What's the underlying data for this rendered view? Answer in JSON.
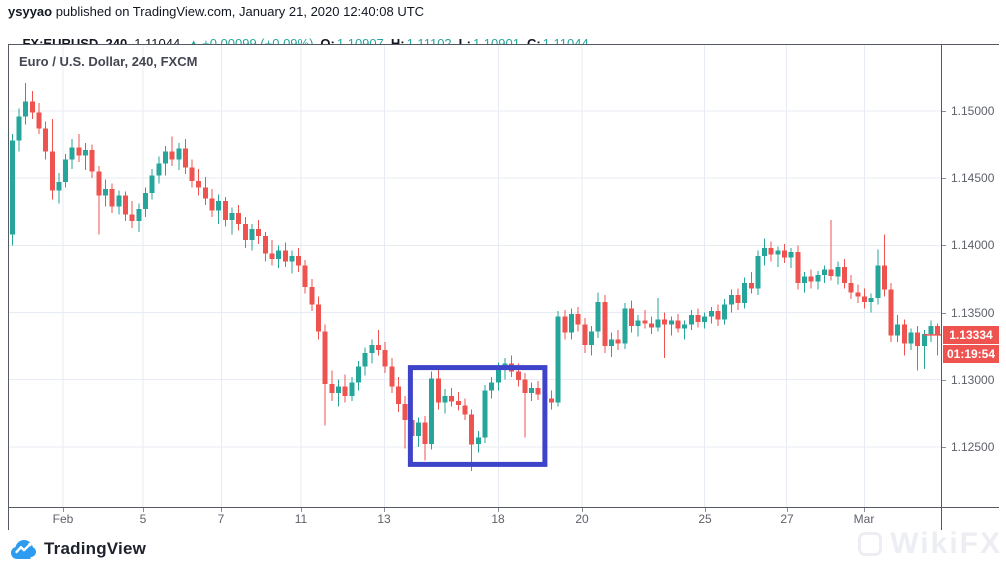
{
  "header": {
    "byline": {
      "author": "ysyyao",
      "text": " published on TradingView.com, January 21, 2020 12:40:08 UTC"
    },
    "symbol_line": {
      "symbol": "FX:EURUSD, 240",
      "last": "1.11044",
      "arrow": "▲",
      "change": "+0.00099 (+0.09%)",
      "o_label": "O:",
      "o": "1.10907",
      "h_label": "H:",
      "h": "1.11102",
      "l_label": "L:",
      "l": "1.10901",
      "c_label": "C:",
      "c": "1.11044"
    }
  },
  "chart": {
    "title": "Euro / U.S. Dollar, 240, FXCM"
  },
  "footer": {
    "brand": "TradingView"
  },
  "watermark": "WikiFX",
  "colors": {
    "up": "#26a69a",
    "down": "#ef5350",
    "grid": "#e7ebf3",
    "frame": "#555962",
    "axis_text": "#5d616b",
    "badge_bg": "#ef5350",
    "badge_text": "#ffffff",
    "annotation_box": "#3e44c9",
    "tv_blue": "#2d9cf0"
  },
  "chart_data": {
    "type": "candlestick",
    "title": "Euro / U.S. Dollar, 240, FXCM",
    "symbol": "EURUSD",
    "timeframe_minutes": "240",
    "exchange": "FXCM",
    "price_range_visible": [
      1.12053,
      1.15491
    ],
    "grid": true,
    "y_axis_labels": [
      {
        "label": "1.15000",
        "price": 1.15
      },
      {
        "label": "1.14500",
        "price": 1.145
      },
      {
        "label": "1.14000",
        "price": 1.14
      },
      {
        "label": "1.13500",
        "price": 1.135
      },
      {
        "label": "1.13000",
        "price": 1.13
      },
      {
        "label": "1.12500",
        "price": 1.125
      }
    ],
    "x_ticks": [
      {
        "label": "Feb",
        "i": 7.6
      },
      {
        "label": "5",
        "i": 19.6
      },
      {
        "label": "7",
        "i": 31.4
      },
      {
        "label": "11",
        "i": 43.4
      },
      {
        "label": "13",
        "i": 55.9
      },
      {
        "label": "18",
        "i": 73.0
      },
      {
        "label": "20",
        "i": 85.6
      },
      {
        "label": "25",
        "i": 104.0
      },
      {
        "label": "27",
        "i": 116.3
      },
      {
        "label": "Mar",
        "i": 128.0
      }
    ],
    "last_price": 1.13334,
    "last_price_label": "1.13334",
    "countdown": "01:19:54",
    "annotation_box": {
      "i_start": 59.8,
      "i_end": 80.0,
      "price_top": 1.1309,
      "price_bottom": 1.1237
    },
    "candles": [
      [
        1.1408,
        1.1483,
        1.14,
        1.1478
      ],
      [
        1.1478,
        1.1502,
        1.147,
        1.1496
      ],
      [
        1.1496,
        1.1521,
        1.149,
        1.1507
      ],
      [
        1.1507,
        1.1515,
        1.1494,
        1.1499
      ],
      [
        1.1499,
        1.1506,
        1.1483,
        1.1487
      ],
      [
        1.1487,
        1.1492,
        1.1464,
        1.147
      ],
      [
        1.147,
        1.1494,
        1.1434,
        1.1441
      ],
      [
        1.1441,
        1.1454,
        1.1431,
        1.1447
      ],
      [
        1.1447,
        1.1468,
        1.1443,
        1.1464
      ],
      [
        1.1464,
        1.1479,
        1.1457,
        1.1473
      ],
      [
        1.1473,
        1.1483,
        1.1462,
        1.1467
      ],
      [
        1.1467,
        1.1476,
        1.1456,
        1.1471
      ],
      [
        1.1471,
        1.1475,
        1.145,
        1.1455
      ],
      [
        1.1455,
        1.1459,
        1.1408,
        1.1437
      ],
      [
        1.1437,
        1.1449,
        1.1429,
        1.1442
      ],
      [
        1.1442,
        1.1446,
        1.1424,
        1.1429
      ],
      [
        1.1429,
        1.1441,
        1.1423,
        1.1437
      ],
      [
        1.1437,
        1.144,
        1.1418,
        1.1423
      ],
      [
        1.1423,
        1.1433,
        1.1413,
        1.1418
      ],
      [
        1.1418,
        1.1431,
        1.141,
        1.1427
      ],
      [
        1.1427,
        1.1443,
        1.1421,
        1.1439
      ],
      [
        1.1439,
        1.1457,
        1.1434,
        1.1452
      ],
      [
        1.1452,
        1.1466,
        1.1446,
        1.1461
      ],
      [
        1.1461,
        1.1474,
        1.1452,
        1.147
      ],
      [
        1.147,
        1.1481,
        1.1459,
        1.1464
      ],
      [
        1.1464,
        1.1476,
        1.1456,
        1.1472
      ],
      [
        1.1472,
        1.1479,
        1.1453,
        1.1458
      ],
      [
        1.1458,
        1.1464,
        1.1443,
        1.1448
      ],
      [
        1.1448,
        1.1457,
        1.1437,
        1.1443
      ],
      [
        1.1443,
        1.1451,
        1.143,
        1.1435
      ],
      [
        1.1435,
        1.1442,
        1.1421,
        1.1426
      ],
      [
        1.1426,
        1.1438,
        1.1416,
        1.1433
      ],
      [
        1.1433,
        1.1436,
        1.1414,
        1.1419
      ],
      [
        1.1419,
        1.1428,
        1.1408,
        1.1424
      ],
      [
        1.1424,
        1.143,
        1.1411,
        1.1416
      ],
      [
        1.1416,
        1.1421,
        1.1398,
        1.1404
      ],
      [
        1.1404,
        1.1416,
        1.1396,
        1.1412
      ],
      [
        1.1412,
        1.1419,
        1.1401,
        1.1407
      ],
      [
        1.1407,
        1.141,
        1.1388,
        1.1394
      ],
      [
        1.1394,
        1.1404,
        1.1385,
        1.139
      ],
      [
        1.139,
        1.14,
        1.1383,
        1.1396
      ],
      [
        1.1396,
        1.1402,
        1.1384,
        1.1388
      ],
      [
        1.1388,
        1.1396,
        1.1379,
        1.1392
      ],
      [
        1.1392,
        1.1398,
        1.138,
        1.1385
      ],
      [
        1.1385,
        1.1389,
        1.1364,
        1.1369
      ],
      [
        1.1369,
        1.1375,
        1.1351,
        1.1356
      ],
      [
        1.1356,
        1.1362,
        1.133,
        1.1336
      ],
      [
        1.1336,
        1.1341,
        1.1266,
        1.1297
      ],
      [
        1.1297,
        1.1307,
        1.1284,
        1.129
      ],
      [
        1.129,
        1.13,
        1.128,
        1.1295
      ],
      [
        1.1295,
        1.1304,
        1.1283,
        1.1288
      ],
      [
        1.1288,
        1.1302,
        1.1284,
        1.1298
      ],
      [
        1.1298,
        1.1314,
        1.1292,
        1.131
      ],
      [
        1.131,
        1.1324,
        1.1303,
        1.132
      ],
      [
        1.132,
        1.133,
        1.1312,
        1.1326
      ],
      [
        1.1326,
        1.1337,
        1.1318,
        1.1322
      ],
      [
        1.1322,
        1.1328,
        1.1305,
        1.131
      ],
      [
        1.131,
        1.1316,
        1.129,
        1.1295
      ],
      [
        1.1295,
        1.1302,
        1.1276,
        1.1282
      ],
      [
        1.1282,
        1.1288,
        1.1249,
        1.127
      ],
      [
        1.127,
        1.1275,
        1.1252,
        1.1258
      ],
      [
        1.1258,
        1.1272,
        1.125,
        1.1268
      ],
      [
        1.1268,
        1.1273,
        1.124,
        1.1252
      ],
      [
        1.1252,
        1.1306,
        1.1248,
        1.1301
      ],
      [
        1.1301,
        1.1309,
        1.1278,
        1.1283
      ],
      [
        1.1283,
        1.1293,
        1.1275,
        1.1288
      ],
      [
        1.1288,
        1.1294,
        1.128,
        1.1284
      ],
      [
        1.1284,
        1.1291,
        1.1277,
        1.1281
      ],
      [
        1.1281,
        1.1286,
        1.127,
        1.1274
      ],
      [
        1.1274,
        1.1278,
        1.1232,
        1.1252
      ],
      [
        1.1252,
        1.1262,
        1.1246,
        1.1257
      ],
      [
        1.1257,
        1.1296,
        1.1253,
        1.1292
      ],
      [
        1.1292,
        1.1302,
        1.1286,
        1.1298
      ],
      [
        1.1298,
        1.1313,
        1.1292,
        1.1308
      ],
      [
        1.1308,
        1.1316,
        1.13,
        1.1312
      ],
      [
        1.1312,
        1.1318,
        1.1302,
        1.1306
      ],
      [
        1.1306,
        1.1312,
        1.1295,
        1.13
      ],
      [
        1.13,
        1.1305,
        1.1257,
        1.129
      ],
      [
        1.129,
        1.1298,
        1.1284,
        1.1294
      ],
      [
        1.1294,
        1.1299,
        1.1285,
        1.1289
      ],
      [
        1.1289,
        1.1295,
        1.1282,
        1.1286
      ],
      [
        1.1286,
        1.1292,
        1.1278,
        1.1283
      ],
      [
        1.1283,
        1.1351,
        1.128,
        1.1347
      ],
      [
        1.1347,
        1.1352,
        1.133,
        1.1335
      ],
      [
        1.1335,
        1.1353,
        1.133,
        1.1349
      ],
      [
        1.1349,
        1.1354,
        1.1336,
        1.1341
      ],
      [
        1.1341,
        1.1346,
        1.132,
        1.1326
      ],
      [
        1.1326,
        1.134,
        1.1318,
        1.1336
      ],
      [
        1.1336,
        1.1365,
        1.1331,
        1.1358
      ],
      [
        1.1358,
        1.1363,
        1.132,
        1.1325
      ],
      [
        1.1325,
        1.1335,
        1.1317,
        1.133
      ],
      [
        1.133,
        1.1337,
        1.1322,
        1.1327
      ],
      [
        1.1327,
        1.1357,
        1.1323,
        1.1353
      ],
      [
        1.1353,
        1.1359,
        1.1335,
        1.134
      ],
      [
        1.134,
        1.1348,
        1.1332,
        1.1344
      ],
      [
        1.1344,
        1.1352,
        1.1338,
        1.1342
      ],
      [
        1.1342,
        1.1347,
        1.1334,
        1.1339
      ],
      [
        1.1339,
        1.1361,
        1.1336,
        1.1345
      ],
      [
        1.1345,
        1.135,
        1.1316,
        1.1341
      ],
      [
        1.1341,
        1.1347,
        1.1333,
        1.1344
      ],
      [
        1.1344,
        1.1349,
        1.1335,
        1.1338
      ],
      [
        1.1338,
        1.1344,
        1.133,
        1.1341
      ],
      [
        1.1341,
        1.1352,
        1.1337,
        1.1348
      ],
      [
        1.1348,
        1.1353,
        1.1339,
        1.1343
      ],
      [
        1.1343,
        1.135,
        1.1338,
        1.1347
      ],
      [
        1.1347,
        1.1354,
        1.1342,
        1.1351
      ],
      [
        1.1351,
        1.1356,
        1.134,
        1.1345
      ],
      [
        1.1345,
        1.136,
        1.1341,
        1.1356
      ],
      [
        1.1356,
        1.1367,
        1.135,
        1.1363
      ],
      [
        1.1363,
        1.1368,
        1.1352,
        1.1357
      ],
      [
        1.1357,
        1.1376,
        1.1353,
        1.1372
      ],
      [
        1.1372,
        1.138,
        1.1364,
        1.1368
      ],
      [
        1.1368,
        1.1396,
        1.1363,
        1.1392
      ],
      [
        1.1392,
        1.1405,
        1.1385,
        1.1398
      ],
      [
        1.1398,
        1.1403,
        1.1388,
        1.1393
      ],
      [
        1.1393,
        1.1399,
        1.1384,
        1.1396
      ],
      [
        1.1396,
        1.1401,
        1.1387,
        1.1391
      ],
      [
        1.1391,
        1.1398,
        1.1383,
        1.1395
      ],
      [
        1.1395,
        1.14,
        1.1367,
        1.1372
      ],
      [
        1.1372,
        1.138,
        1.1365,
        1.1377
      ],
      [
        1.1377,
        1.1382,
        1.1368,
        1.1373
      ],
      [
        1.1373,
        1.1381,
        1.1367,
        1.1378
      ],
      [
        1.1378,
        1.1385,
        1.1372,
        1.1382
      ],
      [
        1.1382,
        1.1419,
        1.1374,
        1.1377
      ],
      [
        1.1377,
        1.1388,
        1.1371,
        1.1384
      ],
      [
        1.1384,
        1.139,
        1.1368,
        1.1372
      ],
      [
        1.1372,
        1.1378,
        1.136,
        1.1365
      ],
      [
        1.1365,
        1.1371,
        1.1357,
        1.1362
      ],
      [
        1.1362,
        1.1368,
        1.1353,
        1.1358
      ],
      [
        1.1358,
        1.1364,
        1.135,
        1.1361
      ],
      [
        1.1361,
        1.1397,
        1.1356,
        1.1385
      ],
      [
        1.1385,
        1.1408,
        1.1362,
        1.1367
      ],
      [
        1.1367,
        1.1372,
        1.1328,
        1.1333
      ],
      [
        1.1333,
        1.1348,
        1.1328,
        1.1341
      ],
      [
        1.1341,
        1.1345,
        1.1318,
        1.1327
      ],
      [
        1.1327,
        1.1338,
        1.1322,
        1.1335
      ],
      [
        1.1335,
        1.134,
        1.1307,
        1.1325
      ],
      [
        1.1325,
        1.1337,
        1.1308,
        1.1334
      ],
      [
        1.1334,
        1.1344,
        1.1328,
        1.134
      ],
      [
        1.134,
        1.1342,
        1.1318,
        1.13334
      ]
    ]
  }
}
